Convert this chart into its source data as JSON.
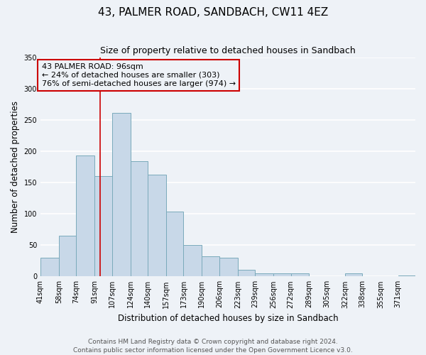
{
  "title": "43, PALMER ROAD, SANDBACH, CW11 4EZ",
  "subtitle": "Size of property relative to detached houses in Sandbach",
  "xlabel": "Distribution of detached houses by size in Sandbach",
  "ylabel": "Number of detached properties",
  "bin_labels": [
    "41sqm",
    "58sqm",
    "74sqm",
    "91sqm",
    "107sqm",
    "124sqm",
    "140sqm",
    "157sqm",
    "173sqm",
    "190sqm",
    "206sqm",
    "223sqm",
    "239sqm",
    "256sqm",
    "272sqm",
    "289sqm",
    "305sqm",
    "322sqm",
    "338sqm",
    "355sqm",
    "371sqm"
  ],
  "bar_heights": [
    30,
    65,
    193,
    160,
    261,
    184,
    163,
    103,
    50,
    32,
    30,
    11,
    5,
    5,
    5,
    0,
    0,
    5,
    0,
    0,
    2
  ],
  "bin_edges": [
    41,
    58,
    74,
    91,
    107,
    124,
    140,
    157,
    173,
    190,
    206,
    223,
    239,
    256,
    272,
    289,
    305,
    322,
    338,
    355,
    371,
    387
  ],
  "bar_color": "#c8d8e8",
  "bar_edge_color": "#7aaabb",
  "vertical_line_x": 96,
  "vertical_line_color": "#cc0000",
  "ylim": [
    0,
    350
  ],
  "yticks": [
    0,
    50,
    100,
    150,
    200,
    250,
    300,
    350
  ],
  "annotation_title": "43 PALMER ROAD: 96sqm",
  "annotation_line1": "← 24% of detached houses are smaller (303)",
  "annotation_line2": "76% of semi-detached houses are larger (974) →",
  "annotation_box_color": "#cc0000",
  "footer_line1": "Contains HM Land Registry data © Crown copyright and database right 2024.",
  "footer_line2": "Contains public sector information licensed under the Open Government Licence v3.0.",
  "background_color": "#eef2f7",
  "grid_color": "#ffffff",
  "title_fontsize": 11,
  "subtitle_fontsize": 9,
  "axis_label_fontsize": 8.5,
  "tick_fontsize": 7,
  "annotation_fontsize": 8,
  "footer_fontsize": 6.5
}
